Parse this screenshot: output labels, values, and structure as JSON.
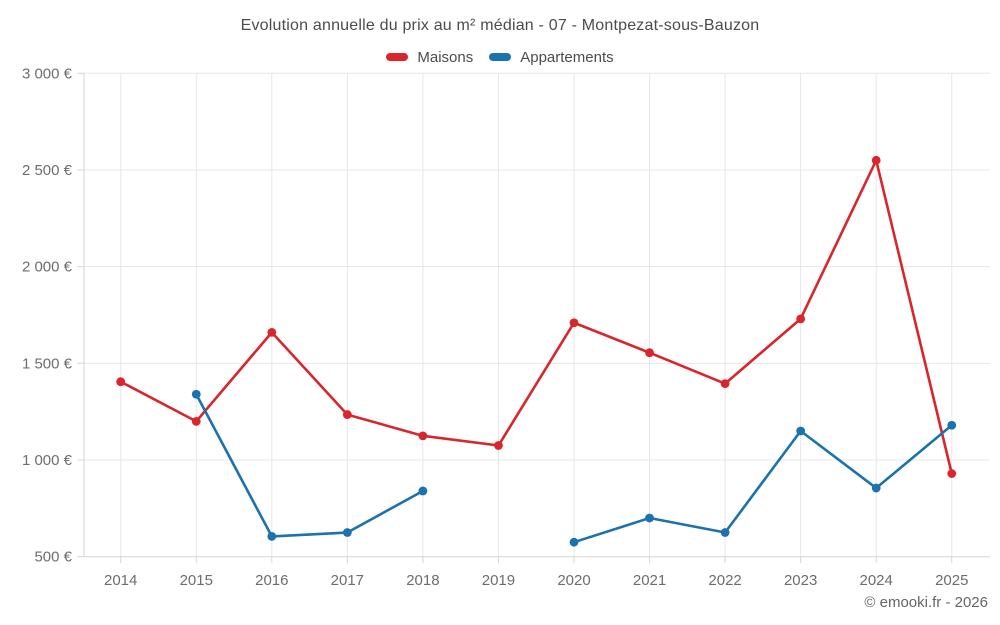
{
  "page": {
    "title": "Evolution annuelle du prix au m² médian - 07 - Montpezat-sous-Bauzon",
    "footer": "© emooki.fr - 2026"
  },
  "colors": {
    "maisons": "#d8262c",
    "appartements": "#1b72ac"
  },
  "chart_data": {
    "type": "line",
    "title": "Evolution annuelle du prix au m² médian - 07 - Montpezat-sous-Bauzon",
    "x": [
      2014,
      2015,
      2016,
      2017,
      2018,
      2019,
      2020,
      2021,
      2022,
      2023,
      2024,
      2025
    ],
    "series": [
      {
        "name": "Maisons",
        "color": "#d8262c",
        "values": [
          1405,
          1200,
          1660,
          1235,
          1125,
          1075,
          1710,
          1555,
          1395,
          1730,
          2550,
          930
        ]
      },
      {
        "name": "Appartements",
        "color": "#1b72ac",
        "values": [
          null,
          1340,
          605,
          625,
          840,
          null,
          575,
          700,
          625,
          1150,
          855,
          1180
        ]
      }
    ],
    "xlabel": "",
    "ylabel": "",
    "ylim": [
      500,
      3000
    ],
    "y_ticks": [
      {
        "value": 500,
        "label": "500 €"
      },
      {
        "value": 1000,
        "label": "1 000 €"
      },
      {
        "value": 1500,
        "label": "1 500 €"
      },
      {
        "value": 2000,
        "label": "2 000 €"
      },
      {
        "value": 2500,
        "label": "2 500 €"
      },
      {
        "value": 3000,
        "label": "3 000 €"
      }
    ],
    "grid": true,
    "legend_position": "top"
  }
}
